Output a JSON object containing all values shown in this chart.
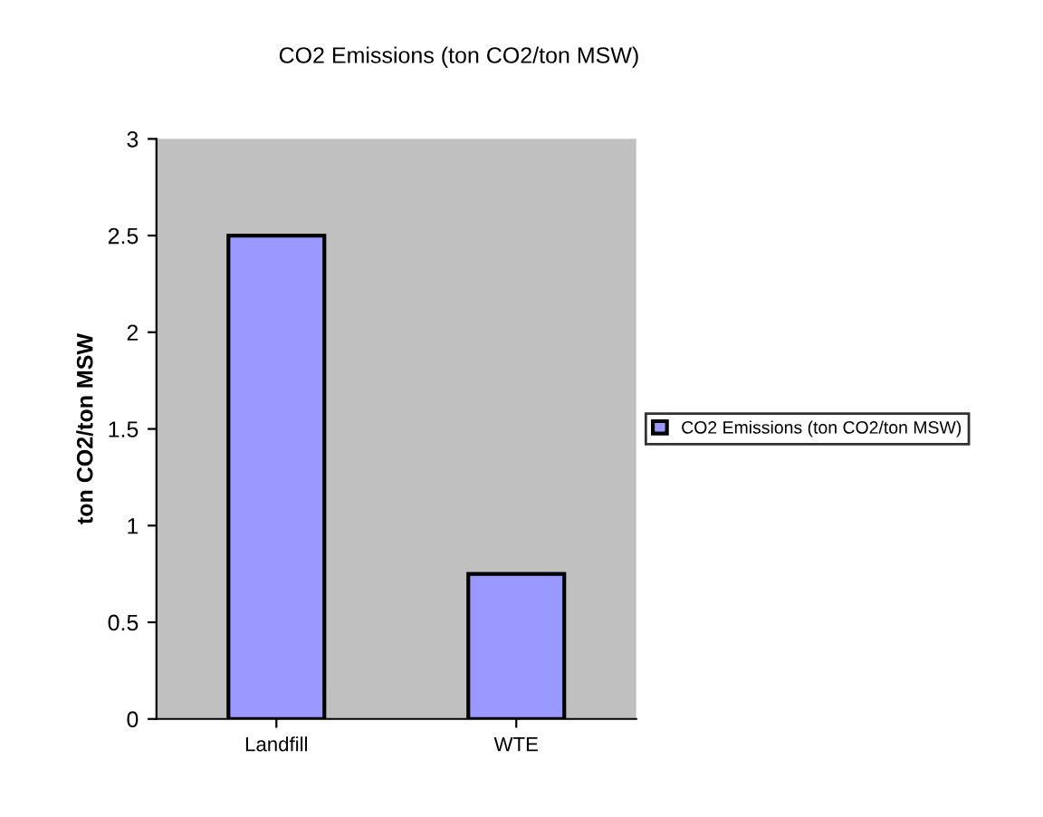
{
  "chart_data": {
    "type": "bar",
    "title": "CO2 Emissions (ton CO2/ton MSW)",
    "ylabel": "ton CO2/ton MSW",
    "categories": [
      "Landfill",
      "WTE"
    ],
    "series": [
      {
        "name": "CO2 Emissions (ton CO2/ton MSW)",
        "color": "#9999ff",
        "values": [
          2.5,
          0.75
        ]
      }
    ],
    "ylim": [
      0,
      3
    ],
    "yticks": [
      0,
      0.5,
      1,
      1.5,
      2,
      2.5,
      3
    ],
    "grid": false,
    "legend": "right"
  }
}
